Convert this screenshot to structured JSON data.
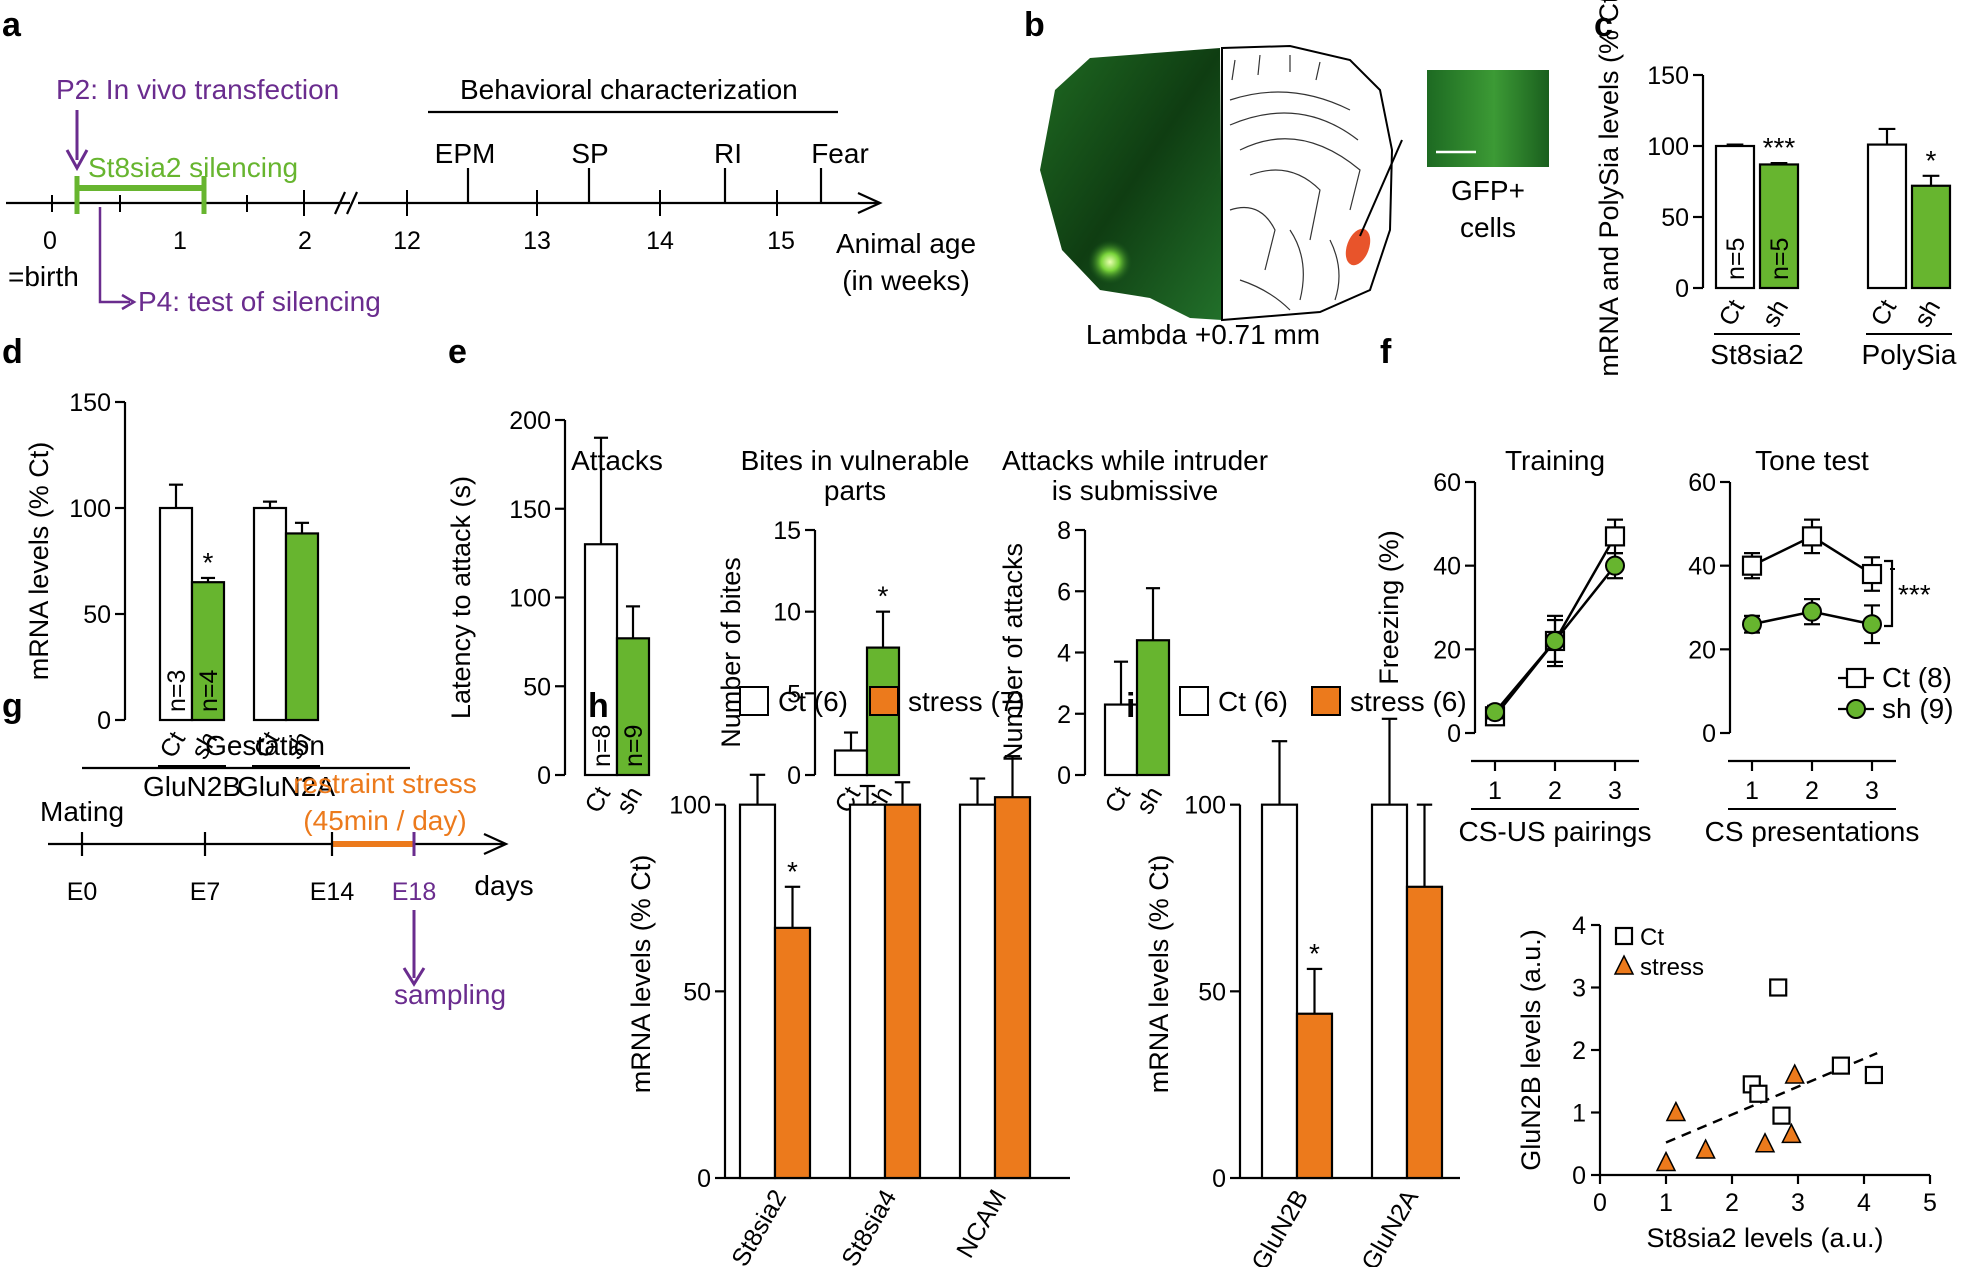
{
  "panels": {
    "a": {
      "letter": "a",
      "transfection": "P2: In vivo transfection",
      "silencing": "St8sia2 silencing",
      "test": "P4: test of silencing",
      "behav_title": "Behavioral characterization",
      "tests": [
        "EPM",
        "SP",
        "RI",
        "Fear"
      ],
      "weeks": [
        "0",
        "1",
        "2",
        "12",
        "13",
        "14",
        "15"
      ],
      "birth": "=birth",
      "age_line1": "Animal age",
      "age_line2": "(in weeks)"
    },
    "b": {
      "letter": "b",
      "gfp_line1": "GFP+",
      "gfp_line2": "cells",
      "coordinate": "Lambda +0.71 mm"
    },
    "c": {
      "letter": "c"
    },
    "d": {
      "letter": "d"
    },
    "e": {
      "letter": "e"
    },
    "f": {
      "letter": "f",
      "legend_ct": "Ct (8)",
      "legend_sh": "sh (9)",
      "sig": "***"
    },
    "g": {
      "letter": "g",
      "gestation": "Gestation",
      "mating": "Mating",
      "stress_line1": "restraint stress",
      "stress_line2": "(45min / day)",
      "days": [
        "E0",
        "E7",
        "E14",
        "E18"
      ],
      "days_label": "days",
      "sampling": "sampling"
    },
    "h": {
      "letter": "h",
      "legend_ct": "Ct (6)",
      "legend_stress": "stress (7)"
    },
    "i": {
      "letter": "i",
      "legend_ct": "Ct (6)",
      "legend_stress": "stress (6)"
    }
  },
  "colors": {
    "green": "#67b52f",
    "orange": "#ec7a1c",
    "purple": "#6a2c8e",
    "black": "#000000",
    "fluorescence_dark": "#0f3d12",
    "lesion": "#e8542b"
  },
  "chart_data": [
    {
      "id": "c",
      "type": "bar",
      "ylabel": "mRNA and PolySia levels (% Ct)",
      "yticks": [
        0,
        50,
        100,
        150
      ],
      "ylim": [
        0,
        150
      ],
      "groups": [
        "St8sia2",
        "PolySia"
      ],
      "bar_labels": [
        "Ct",
        "sh",
        "Ct",
        "sh"
      ],
      "values": [
        100,
        87,
        101,
        72
      ],
      "errors": [
        1,
        1,
        11,
        7
      ],
      "series": [
        "Ct",
        "sh",
        "Ct",
        "sh"
      ],
      "in_bar_text": [
        "n=5",
        "n=5",
        "",
        ""
      ],
      "sig": [
        "",
        "***",
        "",
        "*"
      ]
    },
    {
      "id": "d",
      "type": "bar",
      "ylabel": "mRNA levels (% Ct)",
      "yticks": [
        0,
        50,
        100,
        150
      ],
      "ylim": [
        0,
        150
      ],
      "groups": [
        "GluN2B",
        "GluN2A"
      ],
      "bar_labels": [
        "Ct",
        "sh",
        "Ct",
        "sh"
      ],
      "values": [
        100,
        65,
        100,
        88
      ],
      "errors": [
        11,
        2,
        3,
        5
      ],
      "series": [
        "Ct",
        "sh",
        "Ct",
        "sh"
      ],
      "in_bar_text": [
        "n=3",
        "n=4",
        "",
        ""
      ],
      "sig": [
        "",
        "*",
        "",
        ""
      ]
    },
    {
      "id": "e1",
      "type": "bar",
      "title": "Attacks",
      "ylabel": "Latency to attack (s)",
      "yticks": [
        0,
        50,
        100,
        150,
        200
      ],
      "ylim": [
        0,
        200
      ],
      "bar_labels": [
        "Ct",
        "sh"
      ],
      "values": [
        130,
        77
      ],
      "errors": [
        60,
        18
      ],
      "series": [
        "Ct",
        "sh"
      ],
      "in_bar_text": [
        "n=8",
        "n=9"
      ],
      "sig": [
        "",
        ""
      ]
    },
    {
      "id": "e2",
      "type": "bar",
      "title": "Bites in vulnerable parts",
      "title_lines": [
        "Bites in vulnerable",
        "parts"
      ],
      "ylabel": "Number of bites",
      "yticks": [
        0,
        5,
        10,
        15
      ],
      "ylim": [
        0,
        15
      ],
      "bar_labels": [
        "Ct",
        "sh"
      ],
      "values": [
        1.5,
        7.8
      ],
      "errors": [
        1.1,
        2.2
      ],
      "series": [
        "Ct",
        "sh"
      ],
      "in_bar_text": [
        "",
        ""
      ],
      "sig": [
        "",
        "*"
      ]
    },
    {
      "id": "e3",
      "type": "bar",
      "title": "Attacks while intruder is submissive",
      "title_lines": [
        "Attacks while intruder",
        "is submissive"
      ],
      "ylabel": "Number of attacks",
      "yticks": [
        0,
        2,
        4,
        6,
        8
      ],
      "ylim": [
        0,
        8
      ],
      "bar_labels": [
        "Ct",
        "sh"
      ],
      "values": [
        2.3,
        4.4
      ],
      "errors": [
        1.4,
        1.7
      ],
      "series": [
        "Ct",
        "sh"
      ],
      "in_bar_text": [
        "",
        ""
      ],
      "sig": [
        "",
        ""
      ]
    },
    {
      "id": "f1",
      "type": "line",
      "title": "Training",
      "ylabel": "Freezing (%)",
      "xlabel": "CS-US pairings",
      "x": [
        1,
        2,
        3
      ],
      "yticks": [
        0,
        20,
        40,
        60
      ],
      "ylim": [
        0,
        60
      ],
      "series": [
        {
          "name": "Ct (8)",
          "values": [
            4,
            22,
            47
          ],
          "errors": [
            1.5,
            5,
            4
          ]
        },
        {
          "name": "sh (9)",
          "values": [
            5,
            22,
            40
          ],
          "errors": [
            1.5,
            6,
            3
          ]
        }
      ]
    },
    {
      "id": "f2",
      "type": "line",
      "title": "Tone test",
      "xlabel": "CS presentations",
      "x": [
        1,
        2,
        3
      ],
      "yticks": [
        0,
        20,
        40,
        60
      ],
      "ylim": [
        0,
        60
      ],
      "series": [
        {
          "name": "Ct (8)",
          "values": [
            40,
            47,
            38
          ],
          "errors": [
            3,
            4,
            4
          ]
        },
        {
          "name": "sh (9)",
          "values": [
            26,
            29,
            26
          ],
          "errors": [
            2,
            3,
            4.5
          ]
        }
      ]
    },
    {
      "id": "h",
      "type": "bar",
      "ylabel": "mRNA levels (% Ct)",
      "yticks": [
        0,
        50,
        100
      ],
      "ylim": [
        0,
        120
      ],
      "categories": [
        "St8sia2",
        "St8sia4",
        "NCAM"
      ],
      "series": [
        {
          "name": "Ct (6)",
          "values": [
            100,
            100,
            100
          ],
          "errors": [
            8,
            5,
            7
          ]
        },
        {
          "name": "stress (7)",
          "values": [
            67,
            100,
            102
          ],
          "errors": [
            11,
            6,
            11
          ]
        }
      ],
      "sig": [
        [
          "",
          "*"
        ],
        [
          "",
          ""
        ],
        [
          "",
          ""
        ]
      ]
    },
    {
      "id": "i",
      "type": "bar",
      "ylabel": "mRNA levels (% Ct)",
      "yticks": [
        0,
        50,
        100
      ],
      "ylim": [
        0,
        120
      ],
      "categories": [
        "GluN2B",
        "GluN2A"
      ],
      "series": [
        {
          "name": "Ct (6)",
          "values": [
            100,
            100
          ],
          "errors": [
            17,
            23
          ]
        },
        {
          "name": "stress (6)",
          "values": [
            44,
            78
          ],
          "errors": [
            12,
            22
          ]
        }
      ],
      "sig": [
        [
          "",
          "*"
        ],
        [
          "",
          ""
        ]
      ]
    },
    {
      "id": "i_scatter",
      "type": "scatter",
      "xlabel": "St8sia2 levels (a.u.)",
      "ylabel": "GluN2B levels (a.u.)",
      "xticks": [
        0,
        1,
        2,
        3,
        4,
        5
      ],
      "yticks": [
        0,
        1,
        2,
        3,
        4
      ],
      "xlim": [
        0,
        5
      ],
      "ylim": [
        0,
        4
      ],
      "series": [
        {
          "name": "Ct",
          "points": [
            [
              2.3,
              1.45
            ],
            [
              2.4,
              1.3
            ],
            [
              2.7,
              3.0
            ],
            [
              2.75,
              0.95
            ],
            [
              3.65,
              1.75
            ],
            [
              4.15,
              1.6
            ]
          ]
        },
        {
          "name": "stress",
          "points": [
            [
              1.0,
              0.2
            ],
            [
              1.15,
              1.0
            ],
            [
              1.6,
              0.4
            ],
            [
              2.5,
              0.5
            ],
            [
              2.95,
              1.6
            ],
            [
              2.9,
              0.65
            ]
          ]
        }
      ],
      "trendline": {
        "from": [
          1.0,
          0.52
        ],
        "to": [
          4.2,
          1.95
        ],
        "style": "dashed"
      }
    }
  ]
}
